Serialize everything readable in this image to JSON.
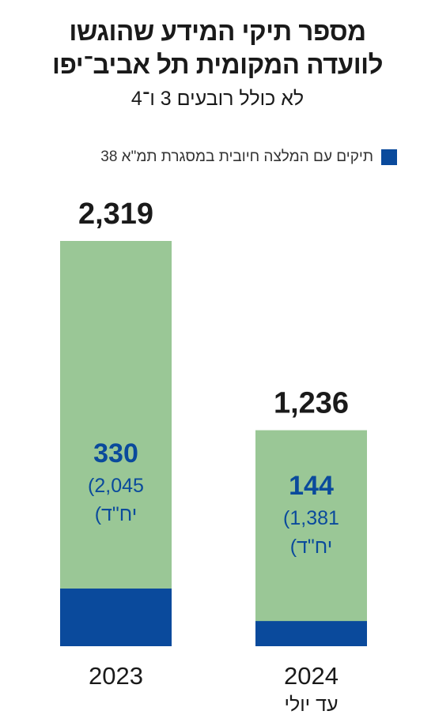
{
  "title_line1": "מספר תיקי המידע שהוגשו",
  "title_line2": "לוועדה המקומית תל אביב־יפו",
  "subtitle": "לא כולל רובעים 3 ו־4",
  "legend": {
    "label": "תיקים עם המלצה חיובית במסגרת תמ\"א 38",
    "color": "#0a4a9c"
  },
  "chart_data": {
    "type": "bar",
    "categories": [
      "2023",
      "2024"
    ],
    "category_notes": [
      "",
      "עד יולי"
    ],
    "series": [
      {
        "name": "",
        "values": [
          2319,
          1236
        ],
        "color": "#9ac796",
        "labels": [
          "2,319",
          "1,236"
        ]
      },
      {
        "name": "תיקים עם המלצה חיובית במסגרת תמ\"א 38",
        "values": [
          330,
          144
        ],
        "color": "#0a4a9c",
        "labels": [
          "330",
          "144"
        ]
      }
    ],
    "housing_units": [
      "(2,045",
      "(1,381"
    ],
    "housing_unit_label": "יח\"ד)",
    "ylim": [
      0,
      2319
    ]
  }
}
